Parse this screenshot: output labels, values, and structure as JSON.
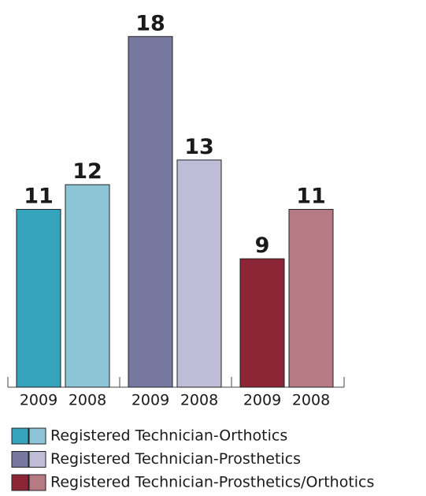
{
  "chart_data": {
    "type": "bar",
    "categories": [
      "2009",
      "2008"
    ],
    "series": [
      {
        "name": "Registered Technician-Orthotics",
        "colors": [
          "#36a4bd",
          "#8ec5d6"
        ],
        "values": [
          11,
          12
        ]
      },
      {
        "name": "Registered Technician-Prosthetics",
        "colors": [
          "#77789f",
          "#bebcd7"
        ],
        "values": [
          18,
          13
        ]
      },
      {
        "name": "Registered Technician-Prosthetics/Orthotics",
        "colors": [
          "#8c2535",
          "#b67a85"
        ],
        "values": [
          9,
          11
        ]
      }
    ],
    "ylim": [
      3.8,
      19
    ]
  }
}
